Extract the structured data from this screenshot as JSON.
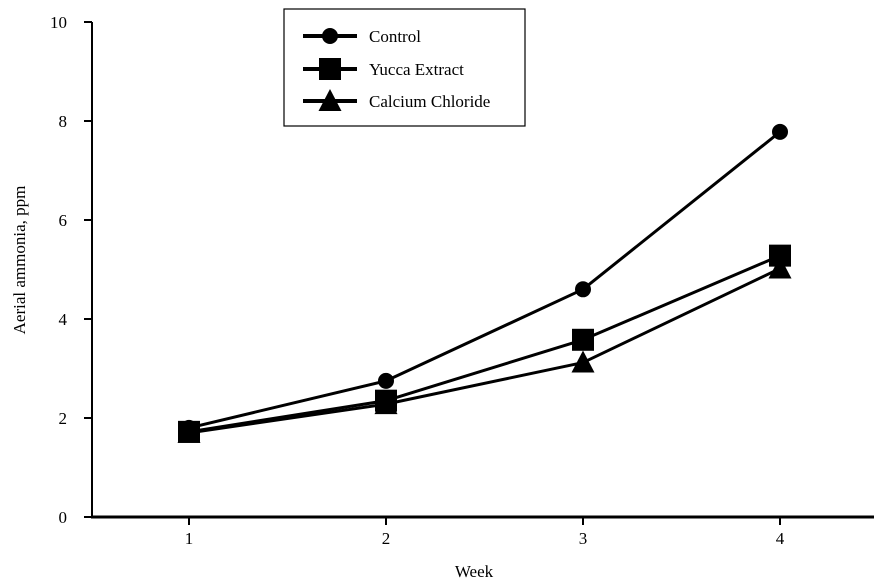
{
  "chart_data": {
    "type": "line",
    "title": "",
    "xlabel": "Week",
    "ylabel": "Aerial ammonia, ppm",
    "x": [
      1,
      2,
      3,
      4
    ],
    "x_tick_labels": [
      "1",
      "2",
      "3",
      "4"
    ],
    "ylim": [
      0,
      10
    ],
    "y_ticks": [
      0,
      2,
      4,
      6,
      8,
      10
    ],
    "y_tick_labels": [
      "0",
      "2",
      "4",
      "6",
      "8",
      "10"
    ],
    "grid": false,
    "legend_position": "top-center",
    "series": [
      {
        "name": "Control",
        "marker": "circle",
        "color": "#000000",
        "values": [
          1.8,
          2.75,
          4.6,
          7.78
        ]
      },
      {
        "name": "Yucca Extract",
        "marker": "square",
        "color": "#000000",
        "values": [
          1.72,
          2.35,
          3.58,
          5.28
        ]
      },
      {
        "name": "Calcium Chloride",
        "marker": "triangle",
        "color": "#000000",
        "values": [
          1.7,
          2.28,
          3.12,
          5.02
        ]
      }
    ]
  }
}
